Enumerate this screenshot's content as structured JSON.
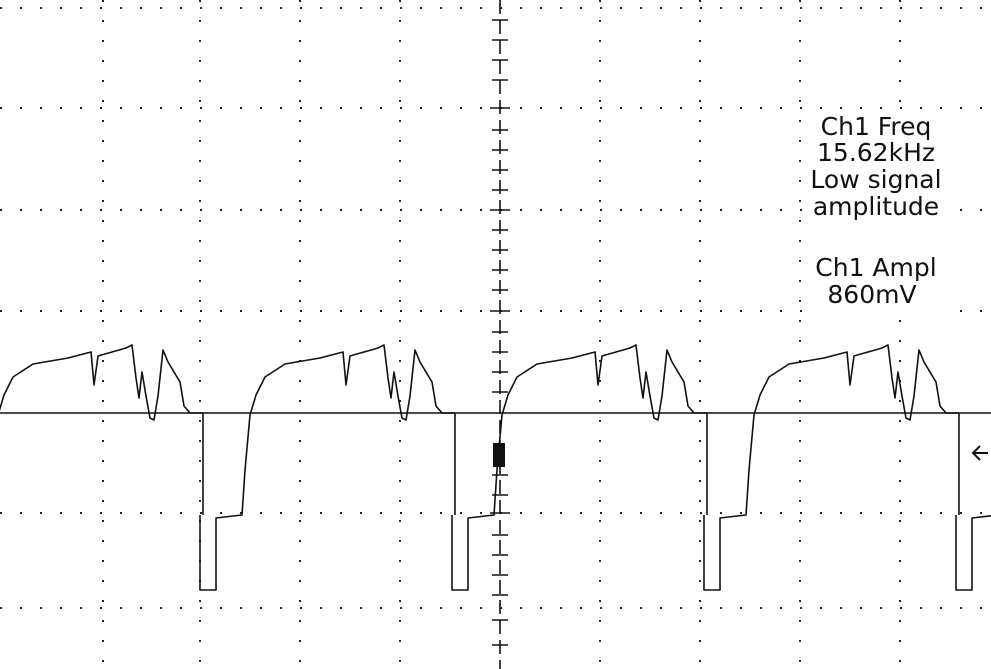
{
  "readout": {
    "freq_label": "Ch1 Freq",
    "freq_value": "15.62kHz",
    "warning": [
      "Low signal",
      "amplitude"
    ],
    "ampl_label": "Ch1 Ampl",
    "ampl_value": "860mV"
  }
}
